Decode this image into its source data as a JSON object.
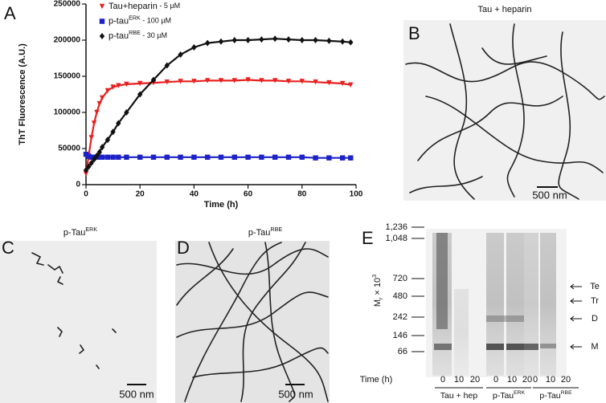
{
  "chart_data": {
    "type": "line",
    "panel_label": "A",
    "ylabel": "ThT Fluorescence (A.U.)",
    "xlabel": "Time (h)",
    "x": [
      0,
      1,
      2,
      3,
      4,
      5,
      6,
      8,
      10,
      12,
      15,
      20,
      25,
      30,
      35,
      40,
      45,
      50,
      55,
      60,
      65,
      70,
      75,
      80,
      85,
      90,
      95,
      98
    ],
    "series": [
      {
        "name": [
          {
            "text": "Tau+heparin"
          },
          {
            "text": " - 5 µM",
            "small": true
          }
        ],
        "color": "#e8201f",
        "marker": "triangle",
        "values": [
          15000,
          40000,
          65000,
          85000,
          100000,
          112000,
          120000,
          130000,
          135000,
          137000,
          139000,
          140000,
          141000,
          142000,
          143000,
          143000,
          144000,
          144000,
          144000,
          145000,
          144000,
          144000,
          143000,
          143000,
          142000,
          141000,
          140000,
          138000
        ]
      },
      {
        "name": [
          {
            "text": "p-tau"
          },
          {
            "text": "ERK",
            "sup": true
          },
          {
            "text": " - 100 µM",
            "small": true
          }
        ],
        "color": "#1d22c8",
        "marker": "square",
        "values": [
          42000,
          39000,
          38000,
          38000,
          38000,
          38000,
          38000,
          38000,
          38000,
          38000,
          38000,
          38000,
          38000,
          38000,
          38000,
          38000,
          38000,
          38000,
          38000,
          38000,
          38000,
          38000,
          38000,
          38000,
          37000,
          37000,
          37000,
          37000
        ]
      },
      {
        "name": [
          {
            "text": "p-tau"
          },
          {
            "text": "RBE",
            "sup": true
          },
          {
            "text": " - 30 µM",
            "small": true
          }
        ],
        "color": "#111111",
        "marker": "diamond",
        "values": [
          20000,
          25000,
          30000,
          35000,
          40000,
          45000,
          52000,
          62000,
          73000,
          85000,
          100000,
          125000,
          145000,
          165000,
          180000,
          190000,
          196000,
          198000,
          200000,
          200000,
          201000,
          202000,
          201000,
          200000,
          200000,
          199000,
          198000,
          197000
        ]
      }
    ],
    "xlim": [
      0,
      100
    ],
    "xticks": [
      0,
      20,
      40,
      60,
      80,
      100
    ],
    "ylim": [
      0,
      250000
    ],
    "yticks": [
      0,
      50000,
      100000,
      150000,
      200000,
      250000
    ]
  },
  "panel_b": {
    "label": "B",
    "title": [
      {
        "text": "Tau + heparin"
      }
    ],
    "scale_bar": "500 nm"
  },
  "panel_c": {
    "label": "C",
    "title": [
      {
        "text": "p-Tau"
      },
      {
        "text": "ERK",
        "sup": true
      }
    ],
    "scale_bar": "500 nm"
  },
  "panel_d": {
    "label": "D",
    "title": [
      {
        "text": "p-Tau"
      },
      {
        "text": "RBE",
        "sup": true
      }
    ],
    "scale_bar": "500 nm"
  },
  "panel_e": {
    "label": "E",
    "ylabel": [
      {
        "text": "M"
      },
      {
        "text": "r",
        "sub": true
      },
      {
        "text": " × 10"
      },
      {
        "text": "3",
        "sup": true
      }
    ],
    "markers": [
      "1,236",
      "1,048",
      "720",
      "480",
      "242",
      "146",
      "66"
    ],
    "bands": [
      "Te",
      "Tr",
      "D",
      "M"
    ],
    "xlabel": "Time (h)",
    "lanes": [
      "0",
      "10",
      "20",
      "0",
      "10",
      "20",
      "0",
      "10",
      "20"
    ],
    "groups": [
      [
        {
          "text": "Tau + hep"
        }
      ],
      [
        {
          "text": "p-Tau"
        },
        {
          "text": "ERK",
          "sup": true
        }
      ],
      [
        {
          "text": "p-Tau"
        },
        {
          "text": "RBE",
          "sup": true
        }
      ]
    ]
  }
}
